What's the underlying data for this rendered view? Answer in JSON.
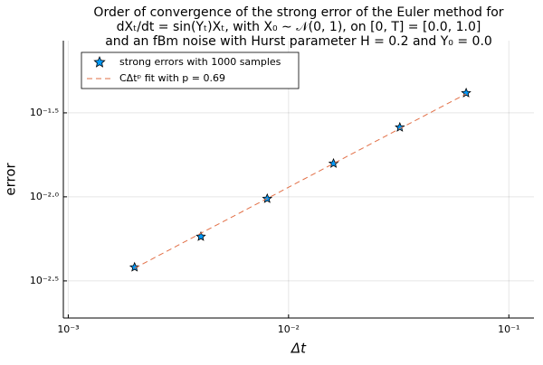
{
  "chart_data": {
    "type": "scatter",
    "title": [
      "Order of convergence of the strong error of the Euler method for",
      "dXₜ/dt = sin(Yₜ)Xₜ, with X₀ ∼ 𝒩(0, 1), on [0, T] = [0.0, 1.0]",
      "and an fBm noise with Hurst parameter H = 0.2 and Y₀ = 0.0"
    ],
    "x_label": "Δt",
    "y_label": "error",
    "x": [
      0.002,
      0.004,
      0.008,
      0.016,
      0.032,
      0.064
    ],
    "series": [
      {
        "name": "strong errors with 1000 samples",
        "color": "#009afa",
        "values": [
          0.00381,
          0.0058,
          0.00975,
          0.0158,
          0.0259,
          0.0415
        ],
        "marker": "star"
      },
      {
        "name": "CΔtᵖ fit with p = 0.69",
        "color": "#e26f46",
        "values": [
          0.00376,
          0.00607,
          0.00977,
          0.01578,
          0.02547,
          0.041
        ],
        "style": "dashed"
      }
    ],
    "xlog": true,
    "ylog": true,
    "xlim": [
      0.00095,
      0.13
    ],
    "ylim": [
      0.0019,
      0.085
    ],
    "xticks": [
      {
        "value": 0.001,
        "label": "10⁻³"
      },
      {
        "value": 0.01,
        "label": "10⁻²"
      },
      {
        "value": 0.1,
        "label": "10⁻¹"
      }
    ],
    "yticks": [
      {
        "value": 0.00316,
        "label": "10⁻²·⁵"
      },
      {
        "value": 0.01,
        "label": "10⁻²·⁰"
      },
      {
        "value": 0.0316,
        "label": "10⁻¹·⁵"
      }
    ],
    "grid": true,
    "legend": "top-left"
  }
}
